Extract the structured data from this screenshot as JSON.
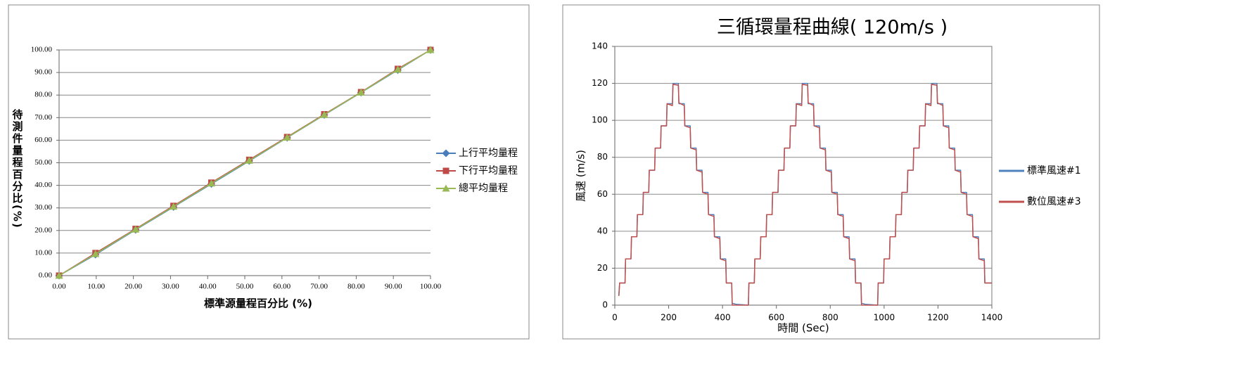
{
  "chart_data": [
    {
      "type": "line",
      "x_label": "標準源量程百分比 (%)",
      "y_label": "待測件量程百分比(%)",
      "x": [
        0,
        9.8,
        20.6,
        30.8,
        41,
        51.2,
        61.4,
        71.4,
        81.3,
        91.2,
        100
      ],
      "series": [
        {
          "name": "上行平均量程",
          "color": "#4a7ebb",
          "marker": "diamond",
          "values": [
            0,
            9.3,
            20.3,
            30.4,
            40.6,
            50.8,
            61.1,
            71.2,
            81.1,
            91.1,
            100
          ]
        },
        {
          "name": "下行平均量程",
          "color": "#be4b48",
          "marker": "square",
          "values": [
            0,
            10.0,
            20.7,
            30.9,
            41.2,
            51.3,
            61.4,
            71.5,
            81.3,
            91.6,
            100
          ]
        },
        {
          "name": "總平均量程",
          "color": "#98b954",
          "marker": "triangle",
          "values": [
            0,
            9.6,
            20.5,
            30.6,
            40.9,
            51.0,
            61.2,
            71.3,
            81.2,
            91.3,
            100
          ]
        }
      ],
      "xlim": [
        0,
        100
      ],
      "ylim": [
        0,
        100
      ],
      "xticks": [
        {
          "value": 0,
          "label": "0.00"
        },
        {
          "value": 10,
          "label": "10.00"
        },
        {
          "value": 20,
          "label": "20.00"
        },
        {
          "value": 30,
          "label": "30.00"
        },
        {
          "value": 40,
          "label": "40.00"
        },
        {
          "value": 50,
          "label": "50.00"
        },
        {
          "value": 60,
          "label": "60.00"
        },
        {
          "value": 70,
          "label": "70.00"
        },
        {
          "value": 80,
          "label": "80.00"
        },
        {
          "value": 90,
          "label": "90.00"
        },
        {
          "value": 100,
          "label": "100.00"
        }
      ],
      "yticks": [
        {
          "value": 0,
          "label": "0.00"
        },
        {
          "value": 10,
          "label": "10.00"
        },
        {
          "value": 20,
          "label": "20.00"
        },
        {
          "value": 30,
          "label": "30.00"
        },
        {
          "value": 40,
          "label": "40.00"
        },
        {
          "value": 50,
          "label": "50.00"
        },
        {
          "value": 60,
          "label": "60.00"
        },
        {
          "value": 70,
          "label": "70.00"
        },
        {
          "value": 80,
          "label": "80.00"
        },
        {
          "value": 90,
          "label": "90.00"
        },
        {
          "value": 100,
          "label": "100.00"
        }
      ],
      "grid": true,
      "legend": "right"
    },
    {
      "type": "line",
      "title": "三循環量程曲線( 120m/s )",
      "x_label": "時間 (Sec)",
      "y_label": "風速 (m/s)",
      "x": [
        15,
        18,
        38,
        40,
        60,
        62,
        82,
        84,
        104,
        106,
        126,
        128,
        148,
        150,
        170,
        172,
        192,
        194,
        214,
        216,
        236,
        238,
        258,
        260,
        280,
        282,
        302,
        304,
        324,
        326,
        346,
        348,
        368,
        370,
        390,
        392,
        412,
        414,
        434,
        436,
        450,
        496,
        498,
        518,
        520,
        540,
        542,
        562,
        564,
        584,
        586,
        606,
        608,
        628,
        630,
        650,
        652,
        672,
        674,
        694,
        696,
        716,
        718,
        738,
        740,
        760,
        762,
        782,
        784,
        804,
        806,
        826,
        828,
        848,
        850,
        870,
        872,
        892,
        894,
        914,
        916,
        930,
        976,
        978,
        998,
        1000,
        1020,
        1022,
        1042,
        1044,
        1064,
        1066,
        1086,
        1088,
        1108,
        1110,
        1130,
        1132,
        1152,
        1154,
        1174,
        1176,
        1196,
        1198,
        1218,
        1220,
        1240,
        1242,
        1262,
        1264,
        1284,
        1286,
        1306,
        1308,
        1328,
        1330,
        1350,
        1352,
        1372,
        1374,
        1400
      ],
      "series": [
        {
          "name": "標準風速#1",
          "color": "#4f81bd",
          "values": [
            5,
            12,
            12,
            25,
            25,
            37,
            37,
            49,
            49,
            61,
            61,
            73,
            73,
            85,
            85,
            97,
            97,
            109,
            109,
            120,
            120,
            109,
            109,
            97,
            97,
            85,
            85,
            73,
            73,
            61,
            61,
            49,
            49,
            37,
            37,
            25,
            25,
            12,
            12,
            1,
            0.5,
            0,
            12,
            12,
            25,
            25,
            37,
            37,
            49,
            49,
            61,
            61,
            73,
            73,
            85,
            85,
            97,
            97,
            109,
            109,
            120,
            120,
            109,
            109,
            97,
            97,
            85,
            85,
            73,
            73,
            61,
            61,
            49,
            49,
            37,
            37,
            25,
            25,
            12,
            12,
            1,
            0.5,
            0,
            12,
            12,
            25,
            25,
            37,
            37,
            49,
            49,
            61,
            61,
            73,
            73,
            85,
            85,
            97,
            97,
            109,
            109,
            120,
            120,
            109,
            109,
            97,
            97,
            85,
            85,
            73,
            73,
            61,
            61,
            49,
            49,
            37,
            37,
            25,
            25,
            12,
            12
          ]
        },
        {
          "name": "數位風速#3",
          "color": "#c0504d",
          "values": [
            5,
            12,
            12,
            25,
            25,
            37,
            37,
            49,
            49,
            61,
            61,
            73,
            73,
            85,
            85,
            97,
            97,
            109,
            108,
            119.5,
            119,
            109.5,
            108,
            97,
            96,
            85,
            84,
            73,
            72,
            61,
            60,
            49,
            48,
            37,
            36,
            25,
            24,
            12,
            12,
            0,
            0,
            0,
            12,
            12,
            25,
            25,
            37,
            37,
            49,
            49,
            61,
            61,
            73,
            73,
            85,
            85,
            97,
            97,
            109,
            108,
            119.5,
            119,
            109.5,
            108,
            97,
            96,
            85,
            84,
            73,
            72,
            61,
            60,
            49,
            48,
            37,
            36,
            25,
            24,
            12,
            12,
            0,
            0,
            0,
            12,
            12,
            25,
            25,
            37,
            37,
            49,
            49,
            61,
            61,
            73,
            73,
            85,
            85,
            97,
            97,
            109,
            108,
            119.5,
            119,
            109.5,
            108,
            97,
            96,
            85,
            84,
            73,
            72,
            61,
            60,
            49,
            48,
            37,
            36,
            25,
            24,
            12,
            12
          ]
        }
      ],
      "xlim": [
        0,
        1400
      ],
      "ylim": [
        0,
        140
      ],
      "xticks": [
        0,
        200,
        400,
        600,
        800,
        1000,
        1200,
        1400
      ],
      "yticks": [
        0,
        20,
        40,
        60,
        80,
        100,
        120,
        140
      ],
      "grid": true,
      "legend": "right"
    }
  ]
}
